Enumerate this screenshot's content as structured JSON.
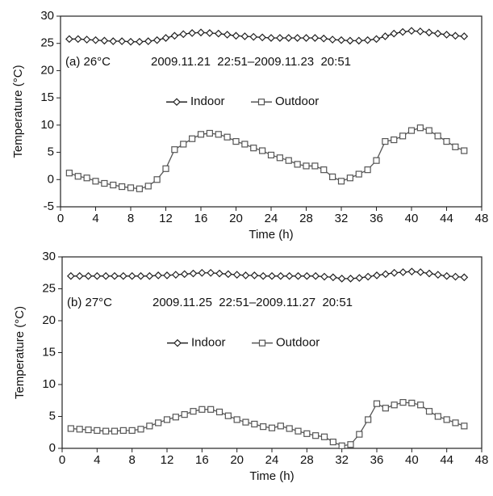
{
  "chart_data": [
    {
      "type": "line",
      "annotations": [
        "(a) 26°C",
        "2009.11.21  22:51–2009.11.23  20:51"
      ],
      "xlabel": "Time (h)",
      "ylabel": "Temperature (°C)",
      "x": [
        1,
        2,
        3,
        4,
        5,
        6,
        7,
        8,
        9,
        10,
        11,
        12,
        13,
        14,
        15,
        16,
        17,
        18,
        19,
        20,
        21,
        22,
        23,
        24,
        25,
        26,
        27,
        28,
        29,
        30,
        31,
        32,
        33,
        34,
        35,
        36,
        37,
        38,
        39,
        40,
        41,
        42,
        43,
        44,
        45,
        46
      ],
      "series": [
        {
          "name": "Indoor",
          "color": "#222222",
          "marker": "diamond",
          "values": [
            25.8,
            25.8,
            25.7,
            25.6,
            25.5,
            25.4,
            25.4,
            25.3,
            25.3,
            25.4,
            25.6,
            26.0,
            26.4,
            26.7,
            26.9,
            27.0,
            26.9,
            26.8,
            26.6,
            26.4,
            26.3,
            26.2,
            26.1,
            26.0,
            26.0,
            26.0,
            26.0,
            26.0,
            26.0,
            25.9,
            25.7,
            25.6,
            25.5,
            25.5,
            25.6,
            25.8,
            26.3,
            26.8,
            27.1,
            27.3,
            27.2,
            27.0,
            26.8,
            26.6,
            26.4,
            26.3
          ]
        },
        {
          "name": "Outdoor",
          "color": "#555555",
          "marker": "square",
          "values": [
            1.2,
            0.6,
            0.3,
            -0.3,
            -0.7,
            -1.0,
            -1.3,
            -1.5,
            -1.7,
            -1.2,
            0.0,
            2.0,
            5.5,
            6.5,
            7.5,
            8.3,
            8.5,
            8.3,
            7.8,
            7.0,
            6.5,
            5.8,
            5.3,
            4.5,
            4.0,
            3.5,
            2.8,
            2.5,
            2.5,
            1.8,
            0.5,
            -0.3,
            0.3,
            1.0,
            1.8,
            3.5,
            7.0,
            7.3,
            8.0,
            9.0,
            9.5,
            9.0,
            8.0,
            7.0,
            6.0,
            5.3
          ]
        }
      ],
      "xlim": [
        0,
        48
      ],
      "xticks": [
        0,
        4,
        8,
        12,
        16,
        20,
        24,
        28,
        32,
        36,
        40,
        44,
        48
      ],
      "ylim": [
        -5,
        30
      ],
      "yticks": [
        -5,
        0,
        5,
        10,
        15,
        20,
        25,
        30
      ],
      "legend": "center"
    },
    {
      "type": "line",
      "annotations": [
        "(b) 27°C",
        "2009.11.25  22:51–2009.11.27  20:51"
      ],
      "xlabel": "Time (h)",
      "ylabel": "Temperature (°C)",
      "x": [
        1,
        2,
        3,
        4,
        5,
        6,
        7,
        8,
        9,
        10,
        11,
        12,
        13,
        14,
        15,
        16,
        17,
        18,
        19,
        20,
        21,
        22,
        23,
        24,
        25,
        26,
        27,
        28,
        29,
        30,
        31,
        32,
        33,
        34,
        35,
        36,
        37,
        38,
        39,
        40,
        41,
        42,
        43,
        44,
        45,
        46
      ],
      "series": [
        {
          "name": "Indoor",
          "color": "#222222",
          "marker": "diamond",
          "values": [
            27.0,
            27.0,
            27.0,
            27.0,
            27.0,
            27.0,
            27.0,
            27.0,
            27.0,
            27.0,
            27.1,
            27.1,
            27.2,
            27.3,
            27.4,
            27.5,
            27.5,
            27.4,
            27.3,
            27.2,
            27.1,
            27.1,
            27.0,
            27.0,
            27.0,
            27.0,
            27.0,
            27.0,
            27.0,
            26.9,
            26.8,
            26.6,
            26.6,
            26.7,
            26.9,
            27.1,
            27.3,
            27.5,
            27.6,
            27.7,
            27.6,
            27.4,
            27.2,
            27.0,
            26.9,
            26.8
          ]
        },
        {
          "name": "Outdoor",
          "color": "#555555",
          "marker": "square",
          "values": [
            3.1,
            3.0,
            2.9,
            2.8,
            2.7,
            2.7,
            2.8,
            2.8,
            3.0,
            3.5,
            4.0,
            4.5,
            4.9,
            5.3,
            5.8,
            6.1,
            6.1,
            5.7,
            5.1,
            4.5,
            4.1,
            3.8,
            3.4,
            3.2,
            3.5,
            3.1,
            2.7,
            2.3,
            2.0,
            1.8,
            1.0,
            0.4,
            0.6,
            2.2,
            4.5,
            7.0,
            6.3,
            6.8,
            7.2,
            7.1,
            6.8,
            5.8,
            5.0,
            4.5,
            4.0,
            3.5
          ]
        }
      ],
      "xlim": [
        0,
        48
      ],
      "xticks": [
        0,
        4,
        8,
        12,
        16,
        20,
        24,
        28,
        32,
        36,
        40,
        44,
        48
      ],
      "ylim": [
        0,
        30
      ],
      "yticks": [
        0,
        5,
        10,
        15,
        20,
        25,
        30
      ],
      "legend": "center"
    }
  ]
}
